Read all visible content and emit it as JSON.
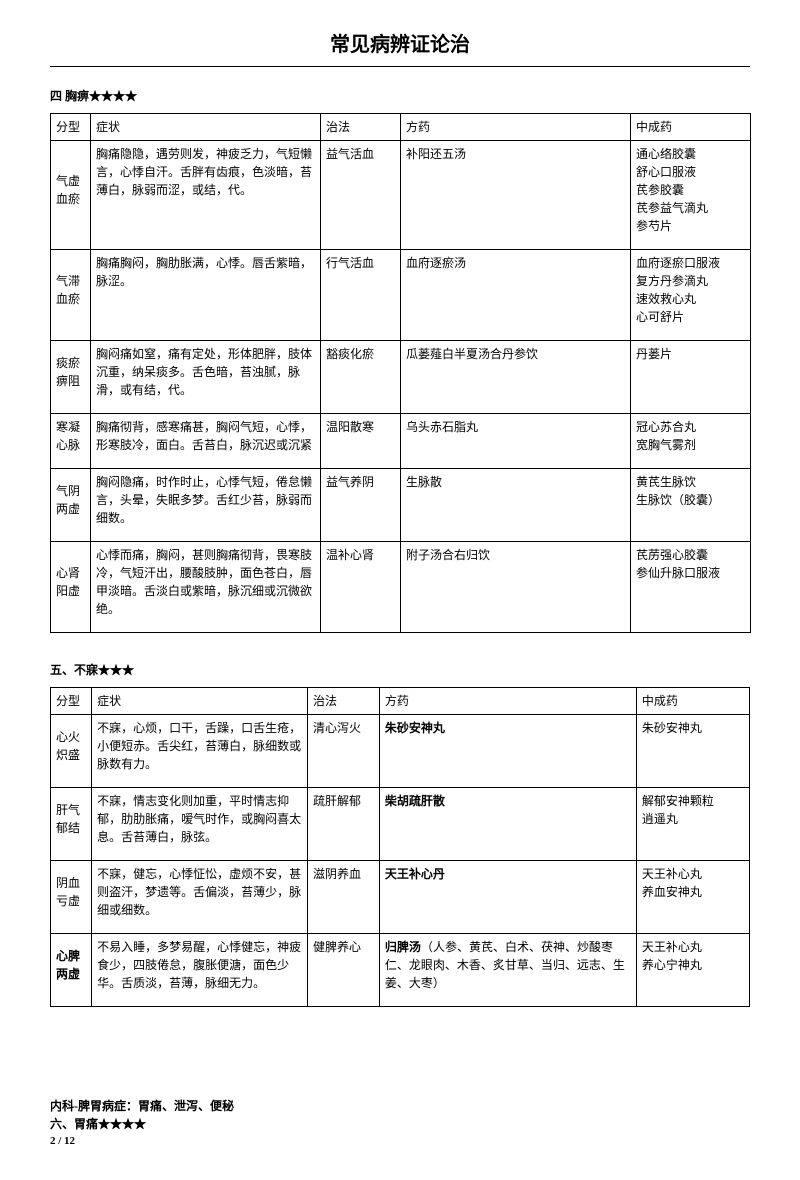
{
  "page": {
    "title": "常见病辨证论治",
    "section1_title": "四 胸痹★★★★",
    "section2_title": "五、不寐★★★",
    "footer_line1": "内科-脾胃病症：胃痛、泄泻、便秘",
    "footer_line2": "六、胃痛★★★★",
    "page_number": "2 / 12"
  },
  "table1": {
    "headers": {
      "c1": "分型",
      "c2": "症状",
      "c3": "治法",
      "c4": "方药",
      "c5": "中成药"
    },
    "rows": [
      {
        "type": "气虚血瘀",
        "symptom": "胸痛隐隐，遇劳则发，神疲乏力，气短懒言，心悸自汗。舌胖有齿痕，色淡暗，苔薄白，脉弱而涩，或结，代。",
        "method": "益气活血",
        "formula": "补阳还五汤",
        "patent": "通心络胶囊\n舒心口服液\n芪参胶囊\n芪参益气滴丸\n参芍片"
      },
      {
        "type": "气滞血瘀",
        "symptom": "胸痛胸闷，胸肋胀满，心悸。唇舌紫暗，脉涩。",
        "method": "行气活血",
        "formula": "血府逐瘀汤",
        "patent": "血府逐瘀口服液\n复方丹参滴丸\n速效救心丸\n心可舒片"
      },
      {
        "type": "痰瘀痹阻",
        "symptom": "胸闷痛如窒，痛有定处，形体肥胖，肢体沉重，纳呆痰多。舌色暗，苔浊腻，脉滑，或有结，代。",
        "method": "豁痰化瘀",
        "formula": "瓜蒌薤白半夏汤合丹参饮",
        "patent": "丹蒌片"
      },
      {
        "type": "寒凝心脉",
        "symptom": "胸痛彻背，感寒痛甚，胸闷气短，心悸，形寒肢冷，面白。舌苔白，脉沉迟或沉紧",
        "method": "温阳散寒",
        "formula": "乌头赤石脂丸",
        "patent": "冠心苏合丸\n宽胸气雾剂"
      },
      {
        "type": "气阴两虚",
        "symptom": "胸闷隐痛，时作时止，心悸气短，倦怠懒言，头晕，失眠多梦。舌红少苔，脉弱而细数。",
        "method": "益气养阴",
        "formula": "生脉散",
        "patent": "黄芪生脉饮\n生脉饮（胶囊）"
      },
      {
        "type": "心肾阳虚",
        "symptom": "心悸而痛，胸闷，甚则胸痛彻背，畏寒肢冷，气短汗出，腰酸肢肿，面色苍白，唇甲淡暗。舌淡白或紫暗，脉沉细或沉微欲绝。",
        "method": "温补心肾",
        "formula": "附子汤合右归饮",
        "patent": "芪苈强心胶囊\n参仙升脉口服液"
      }
    ]
  },
  "table2": {
    "headers": {
      "c1": "分型",
      "c2": "症状",
      "c3": "治法",
      "c4": "方药",
      "c5": "中成药"
    },
    "rows": [
      {
        "type": "心火炽盛",
        "symptom": "不寐，心烦，口干，舌躁，口舌生疮，小便短赤。舌尖红，苔薄白，脉细数或脉数有力。",
        "method": "清心泻火",
        "formula_bold": "朱砂安神丸",
        "formula_rest": "",
        "patent": "朱砂安神丸"
      },
      {
        "type": "肝气郁结",
        "symptom": "不寐，情志变化则加重，平时情志抑郁，肋肋胀痛，嗳气时作，或胸闷喜太息。舌苔薄白，脉弦。",
        "method": "疏肝解郁",
        "formula_bold": "柴胡疏肝散",
        "formula_rest": "",
        "patent": "解郁安神颗粒\n逍遥丸"
      },
      {
        "type": "阴血亏虚",
        "symptom": "不寐，健忘，心悸怔忪，虚烦不安，甚则盗汗，梦遗等。舌偏淡，苔薄少，脉细或细数。",
        "method": "滋阴养血",
        "formula_bold": "天王补心丹",
        "formula_rest": "",
        "patent": "天王补心丸\n养血安神丸"
      },
      {
        "type": "心脾两虚",
        "type_bold": true,
        "symptom": "不易入睡，多梦易醒，心悸健忘，神疲食少，四肢倦怠，腹胀便溏，面色少华。舌质淡，苔薄，脉细无力。",
        "method": "健脾养心",
        "formula_bold": "归脾汤",
        "formula_rest": "（人参、黄芪、白术、茯神、炒酸枣仁、龙眼肉、木香、炙甘草、当归、远志、生姜、大枣）",
        "patent": "天王补心丸\n养心宁神丸"
      }
    ]
  }
}
